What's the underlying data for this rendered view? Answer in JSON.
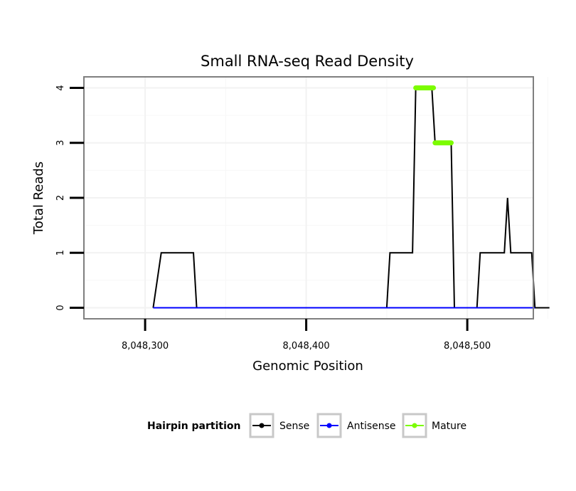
{
  "chart_data": {
    "type": "line",
    "title": "Small RNA-seq Read Density",
    "xlabel": "Genomic Position",
    "ylabel": "Total Reads",
    "xlim": [
      8048262,
      8048541
    ],
    "ylim": [
      -0.2,
      4.2
    ],
    "x_ticks": [
      8048300,
      8048400,
      8048500
    ],
    "x_tick_labels": [
      "8,048,300",
      "8,048,400",
      "8,048,500"
    ],
    "y_ticks": [
      0,
      1,
      2,
      3,
      4
    ],
    "y_tick_labels": [
      "0",
      "1",
      "2",
      "3",
      "4"
    ],
    "grid": true,
    "legend": {
      "title": "Hairpin partition",
      "position": "bottom",
      "entries": [
        {
          "label": "Sense",
          "color": "#000000"
        },
        {
          "label": "Antisense",
          "color": "#0000ff"
        },
        {
          "label": "Mature",
          "color": "#7cfc00"
        }
      ]
    },
    "series": [
      {
        "name": "Sense",
        "color": "#000000",
        "x": [
          8048305,
          8048310,
          8048330,
          8048332,
          8048450,
          8048452,
          8048466,
          8048468,
          8048478,
          8048480,
          8048490,
          8048492,
          8048506,
          8048508,
          8048523,
          8048525,
          8048527,
          8048540,
          8048542,
          8048551
        ],
        "values": [
          0,
          1,
          1,
          0,
          0,
          1,
          1,
          4,
          4,
          3,
          3,
          0,
          0,
          1,
          1,
          2,
          1,
          1,
          0,
          0
        ]
      },
      {
        "name": "Antisense",
        "color": "#0000ff",
        "x": [
          8048305,
          8048542
        ],
        "values": [
          0,
          0
        ]
      },
      {
        "name": "Mature",
        "color": "#7cfc00",
        "segments": [
          {
            "x": [
              8048468,
              8048479
            ],
            "values": [
              4,
              4
            ]
          },
          {
            "x": [
              8048480,
              8048490
            ],
            "values": [
              3,
              3
            ]
          }
        ]
      }
    ]
  }
}
